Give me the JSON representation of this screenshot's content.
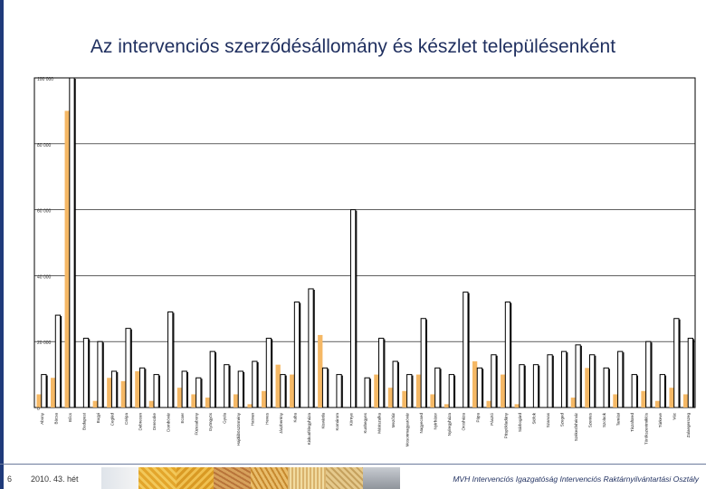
{
  "header": {
    "title": "Az intervenciós szerződésállomány és készlet településenként"
  },
  "footer": {
    "page_number": "6",
    "week": "2010. 43. hét",
    "org": "MVH Intervenciós Igazgatóság Intervenciós Raktárnyilvántartási Osztály"
  },
  "colors": {
    "stock": "#f5b865",
    "contract_stroke": "#000000",
    "frame": "#000000",
    "grid": "#000000"
  },
  "chart_data": {
    "type": "bar",
    "title": "",
    "xlabel": "",
    "ylabel": "",
    "ylim": [
      0,
      100000
    ],
    "yticks": [
      "0",
      "20 000",
      "40 000",
      "60 000",
      "80 000",
      "100 000"
    ],
    "grid": "horizontal",
    "categories": [
      "Abony",
      "Bácsa",
      "Bőcs",
      "Budapest",
      "Bugyi",
      "Cegléd",
      "Csépa",
      "Debrecen",
      "Derecske",
      "Dombóvár",
      "Ecser",
      "Füzesabony",
      "Gyöngyös",
      "Gyula",
      "Hajdúböszörmény",
      "Hatvan",
      "Heves",
      "Jászberény",
      "Kaba",
      "Kiskunfélegyháza",
      "Kisvárda",
      "Komárom",
      "Környe",
      "Kunhegyes",
      "Mátészalka",
      "Mezőtúr",
      "Mosonmagyaróvár",
      "Nagyecsed",
      "Nyírbátor",
      "Nyíregyháza",
      "Orosháza",
      "Pápa",
      "Pásztó",
      "Püspökladány",
      "Sárbogárd",
      "Siófok",
      "Szarvas",
      "Szeged",
      "Székesfehérvár",
      "Szentes",
      "Szolnok",
      "Tamási",
      "Tiszafüred",
      "Törökszentmiklós",
      "Túrkeve",
      "Vác",
      "Zalaegerszeg"
    ],
    "series": [
      {
        "name": "",
        "kind": "contract",
        "values": [
          10000,
          28000,
          100000,
          21000,
          20000,
          11000,
          24000,
          12000,
          10000,
          29000,
          11000,
          9000,
          17000,
          13000,
          11000,
          14000,
          21000,
          10000,
          32000,
          36000,
          12000,
          10000,
          60000,
          9000,
          21000,
          14000,
          10000,
          27000,
          12000,
          10000,
          35000,
          12000,
          16000,
          32000,
          13000,
          13000,
          16000,
          17000,
          19000,
          16000,
          12000,
          17000,
          10000,
          20000,
          10000,
          27000,
          21000
        ]
      },
      {
        "name": "",
        "kind": "stock",
        "values": [
          4000,
          9000,
          90000,
          0,
          2000,
          9000,
          8000,
          11000,
          2000,
          0,
          6000,
          4000,
          3000,
          0,
          4000,
          1000,
          5000,
          13000,
          10000,
          0,
          22000,
          0,
          0,
          0,
          10000,
          6000,
          5000,
          10000,
          4000,
          1000,
          0,
          14000,
          2000,
          10000,
          1000,
          0,
          0,
          0,
          3000,
          12000,
          0,
          4000,
          0,
          5000,
          2000,
          6000,
          4000
        ]
      }
    ]
  }
}
